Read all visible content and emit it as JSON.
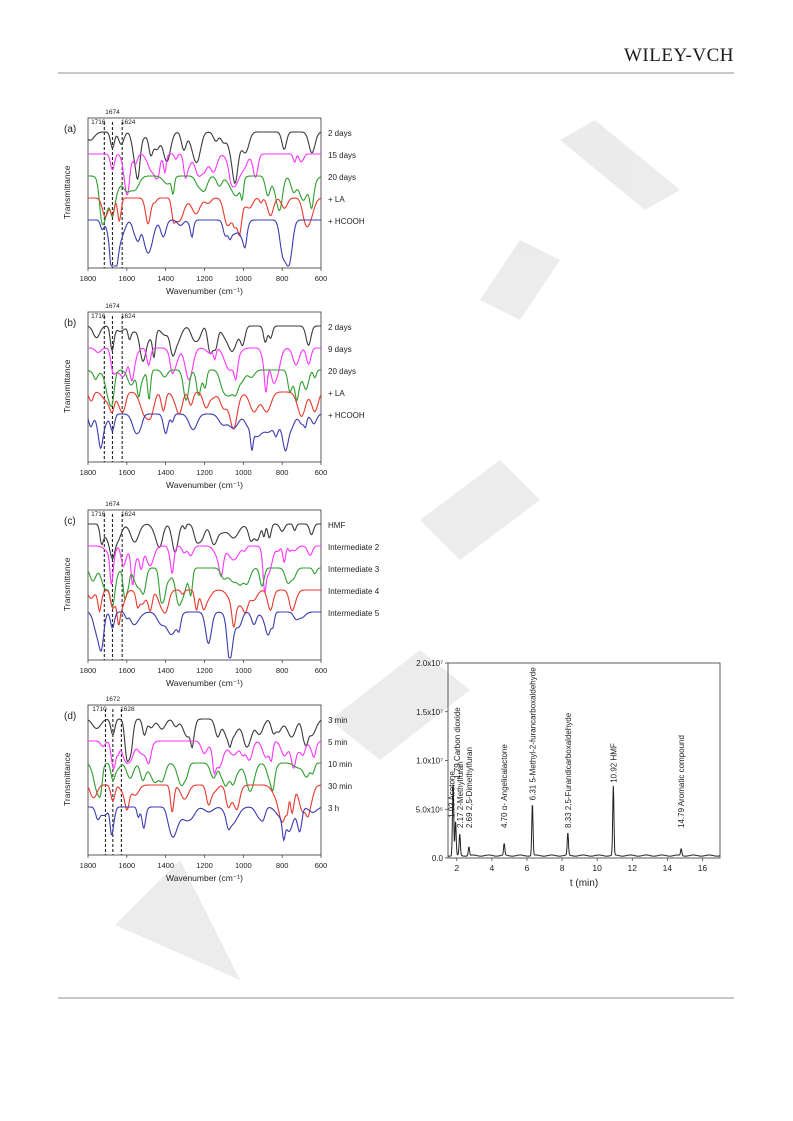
{
  "header": {
    "logo_text": "WILEY-VCH"
  },
  "ftir_panels": [
    {
      "label": "(a)",
      "markers": [
        "1716",
        "1674",
        "1624"
      ],
      "marker_values": [
        1716,
        1674,
        1624
      ],
      "series": [
        {
          "name": "2  days",
          "color": "#3a3a3a"
        },
        {
          "name": "15 days",
          "color": "#ff33ff"
        },
        {
          "name": "20 days",
          "color": "#2e9e2e"
        },
        {
          "name": "+ LA",
          "color": "#e8392b"
        },
        {
          "name": "+ HCOOH",
          "color": "#3b3bb0"
        }
      ]
    },
    {
      "label": "(b)",
      "markers": [
        "1716",
        "1674",
        "1624"
      ],
      "marker_values": [
        1716,
        1674,
        1624
      ],
      "series": [
        {
          "name": "2  days",
          "color": "#3a3a3a"
        },
        {
          "name": "9  days",
          "color": "#ff33ff"
        },
        {
          "name": "20 days",
          "color": "#2e9e2e"
        },
        {
          "name": "+ LA",
          "color": "#e8392b"
        },
        {
          "name": "+ HCOOH",
          "color": "#3b3bb0"
        }
      ]
    },
    {
      "label": "(c)",
      "markers": [
        "1716",
        "1674",
        "1624"
      ],
      "marker_values": [
        1716,
        1674,
        1624
      ],
      "series": [
        {
          "name": "HMF",
          "color": "#3a3a3a"
        },
        {
          "name": "Intermediate 2",
          "color": "#ff33ff"
        },
        {
          "name": "Intermediate 3",
          "color": "#2e9e2e"
        },
        {
          "name": "Intermediate 4",
          "color": "#e8392b"
        },
        {
          "name": "Intermediate 5",
          "color": "#3b3bb0"
        }
      ]
    },
    {
      "label": "(d)",
      "markers": [
        "1710",
        "1672",
        "1628"
      ],
      "marker_values": [
        1710,
        1672,
        1628
      ],
      "series": [
        {
          "name": "3 min",
          "color": "#3a3a3a"
        },
        {
          "name": "5 min",
          "color": "#ff33ff"
        },
        {
          "name": "10 min",
          "color": "#2e9e2e"
        },
        {
          "name": "30 min",
          "color": "#e8392b"
        },
        {
          "name": "3 h",
          "color": "#3b3bb0"
        }
      ]
    }
  ],
  "ftir_axes": {
    "xlabel": "Wavenumber (cm⁻¹)",
    "ylabel": "Transmittance",
    "xticks": [
      "1800",
      "1600",
      "1400",
      "1200",
      "1000",
      "800",
      "600"
    ]
  },
  "chart_data": {
    "type": "line",
    "xlabel": "t (min)",
    "ylabel": "",
    "xlim": [
      1.5,
      17
    ],
    "ylim": [
      0,
      20000000
    ],
    "xticks": [
      "2",
      "4",
      "6",
      "8",
      "10",
      "12",
      "14",
      "16"
    ],
    "yticks": [
      "0.0",
      "5.0x10⁶",
      "1.0x10⁷",
      "1.5x10⁷",
      "2.0x10⁷"
    ],
    "peaks": [
      {
        "t": 1.79,
        "label": "1.79 Carbon dioxide",
        "height": 7500000
      },
      {
        "t": 1.93,
        "label": "1.93 Acetone",
        "height": 3500000
      },
      {
        "t": 2.17,
        "label": "2.17 2-Methylfuran",
        "height": 2200000
      },
      {
        "t": 2.69,
        "label": "2.69 2,5-Dimethylfuran",
        "height": 900000
      },
      {
        "t": 4.7,
        "label": "4.70 α- Angelicalactone",
        "height": 1200000
      },
      {
        "t": 6.31,
        "label": "6.31 5-Methyl-2-furancarboxaldehyde",
        "height": 5300000
      },
      {
        "t": 8.33,
        "label": "8.33 2,5-Furandicarboxaldehyde",
        "height": 2300000
      },
      {
        "t": 10.92,
        "label": "10.92 HMF",
        "height": 7100000
      },
      {
        "t": 14.79,
        "label": "14.79 Aromatic compound",
        "height": 700000
      }
    ]
  }
}
